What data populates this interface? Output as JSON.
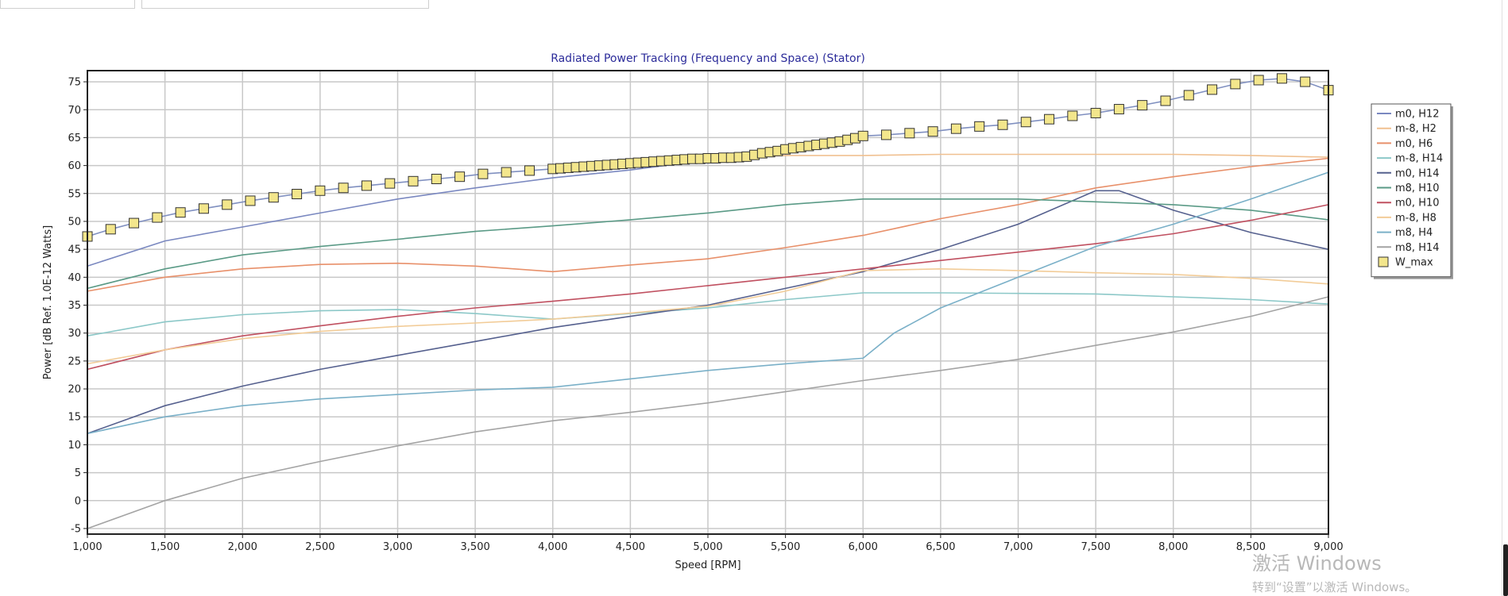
{
  "colors": {
    "plot_bg": "#ffffff",
    "grid": "#c8c8c8",
    "axis": "#222222",
    "title": "#2c2c9a",
    "marker_fill": "#f3e68c",
    "marker_stroke": "#333333"
  },
  "watermark": {
    "line1": "激活 Windows",
    "line2": "转到“设置”以激活 Windows。"
  },
  "chart_data": {
    "type": "line",
    "title": "Radiated Power Tracking (Frequency and Space) (Stator)",
    "xlabel": "Speed [RPM]",
    "ylabel": "Power [dB Ref. 1.0E-12 Watts]",
    "xlim": [
      1000,
      9000
    ],
    "ylim": [
      -6,
      77
    ],
    "xticks": [
      1000,
      1500,
      2000,
      2500,
      3000,
      3500,
      4000,
      4500,
      5000,
      5500,
      6000,
      6500,
      7000,
      7500,
      8000,
      8500,
      9000
    ],
    "xtick_labels": [
      "1,000",
      "1,500",
      "2,000",
      "2,500",
      "3,000",
      "3,500",
      "4,000",
      "4,500",
      "5,000",
      "5,500",
      "6,000",
      "6,500",
      "7,000",
      "7,500",
      "8,000",
      "8,500",
      "9,000"
    ],
    "yticks": [
      -5,
      0,
      5,
      10,
      15,
      20,
      25,
      30,
      35,
      40,
      45,
      50,
      55,
      60,
      65,
      70,
      75
    ],
    "ytick_labels": [
      "-5",
      "0",
      "5",
      "10",
      "15",
      "20",
      "25",
      "30",
      "35",
      "40",
      "45",
      "50",
      "55",
      "60",
      "65",
      "70",
      "75"
    ],
    "grid": true,
    "legend_position": "right",
    "series": [
      {
        "name": "m0, H12",
        "color": "#7a88c0",
        "x": [
          1000,
          1500,
          2000,
          2500,
          3000,
          3500,
          4000,
          4500,
          5000,
          5500,
          6000
        ],
        "y": [
          42,
          46.5,
          49,
          51.5,
          54,
          56,
          57.8,
          59.2,
          61,
          62.8,
          65
        ]
      },
      {
        "name": "m-8, H2",
        "color": "#f0c090",
        "x": [
          4000,
          4500,
          5000,
          5500,
          6000,
          6500,
          7000,
          7500,
          8000,
          8500,
          9000
        ],
        "y": [
          59.5,
          60.2,
          61.3,
          61.8,
          61.8,
          62,
          62,
          62,
          62,
          61.8,
          61.5
        ]
      },
      {
        "name": "m0, H6",
        "color": "#e8906a",
        "x": [
          1000,
          1500,
          2000,
          2500,
          3000,
          3500,
          4000,
          4500,
          5000,
          5500,
          6000,
          6500,
          7000,
          7500,
          8000,
          8500,
          9000
        ],
        "y": [
          37.5,
          40,
          41.5,
          42.3,
          42.5,
          42,
          41,
          42.2,
          43.3,
          45.3,
          47.5,
          50.5,
          53,
          56,
          58,
          59.8,
          61.3
        ]
      },
      {
        "name": "m-8, H14",
        "color": "#8cc8c8",
        "x": [
          1000,
          1500,
          2000,
          2500,
          3000,
          3500,
          4000,
          4500,
          5000,
          5500,
          6000,
          6500,
          7000,
          7500,
          8000,
          8500,
          9000
        ],
        "y": [
          29.5,
          32,
          33.3,
          34,
          34.2,
          33.5,
          32.5,
          33.5,
          34.5,
          36,
          37.2,
          37.2,
          37.1,
          37,
          36.5,
          36,
          35.2
        ]
      },
      {
        "name": "m0, H14",
        "color": "#55608e",
        "x": [
          1000,
          1500,
          2000,
          2500,
          3000,
          3500,
          4000,
          4500,
          5000,
          5500,
          6000,
          6500,
          7000,
          7500,
          7650,
          8000,
          8500,
          9000
        ],
        "y": [
          12,
          17,
          20.5,
          23.5,
          26,
          28.5,
          31,
          33,
          35,
          38,
          41,
          45,
          49.5,
          55.5,
          55.5,
          52,
          48,
          45
        ]
      },
      {
        "name": "m8, H10",
        "color": "#5a9a86",
        "x": [
          1000,
          1500,
          2000,
          2500,
          3000,
          3500,
          4000,
          4500,
          5000,
          5500,
          6000,
          6500,
          7000,
          7500,
          8000,
          8500,
          9000
        ],
        "y": [
          38,
          41.5,
          44,
          45.5,
          46.8,
          48.2,
          49.2,
          50.3,
          51.5,
          53,
          54,
          54,
          54,
          53.5,
          53,
          52,
          50.3
        ]
      },
      {
        "name": "m0, H10",
        "color": "#c05060",
        "x": [
          1000,
          1500,
          2000,
          2500,
          3000,
          3500,
          4000,
          4500,
          5000,
          5500,
          6000,
          6500,
          7000,
          7500,
          8000,
          8500,
          9000
        ],
        "y": [
          23.5,
          27,
          29.5,
          31.3,
          33,
          34.5,
          35.7,
          37,
          38.5,
          40,
          41.5,
          43,
          44.5,
          46,
          47.8,
          50.2,
          53
        ]
      },
      {
        "name": "m-8, H8",
        "color": "#f2cc98",
        "x": [
          1000,
          1500,
          2000,
          2500,
          3000,
          3500,
          4000,
          4500,
          5000,
          5500,
          6000,
          6500,
          7000,
          7500,
          8000,
          8500,
          9000
        ],
        "y": [
          24.5,
          27,
          29,
          30.3,
          31.2,
          31.8,
          32.5,
          33.6,
          34.8,
          37.5,
          41.2,
          41.5,
          41.2,
          40.8,
          40.5,
          39.8,
          38.8
        ]
      },
      {
        "name": "m8, H4",
        "color": "#7ab0c8",
        "x": [
          1000,
          1500,
          2000,
          2500,
          3000,
          3500,
          4000,
          4500,
          5000,
          5500,
          6000,
          6200,
          6500,
          7000,
          7500,
          8000,
          8500,
          9000
        ],
        "y": [
          12,
          15,
          17,
          18.2,
          19,
          19.8,
          20.3,
          21.8,
          23.3,
          24.5,
          25.5,
          30,
          34.5,
          40,
          45.5,
          49.5,
          54,
          58.8
        ]
      },
      {
        "name": "m8, H14",
        "color": "#a4a4a4",
        "x": [
          1000,
          1500,
          2000,
          2500,
          3000,
          3500,
          4000,
          4500,
          5000,
          5500,
          6000,
          6500,
          7000,
          7500,
          8000,
          8500,
          9000
        ],
        "y": [
          -5,
          0,
          4,
          7,
          9.8,
          12.3,
          14.3,
          15.8,
          17.5,
          19.5,
          21.5,
          23.3,
          25.3,
          27.8,
          30.2,
          33,
          36.5
        ]
      },
      {
        "name": "W_max",
        "color": "#8090c0",
        "marker": "square",
        "x": [
          1000,
          1150,
          1300,
          1450,
          1600,
          1750,
          1900,
          2050,
          2200,
          2350,
          2500,
          2650,
          2800,
          2950,
          3100,
          3250,
          3400,
          3550,
          3700,
          3850,
          4000,
          4050,
          4100,
          4150,
          4200,
          4250,
          4300,
          4350,
          4400,
          4450,
          4500,
          4550,
          4600,
          4650,
          4700,
          4750,
          4800,
          4850,
          4900,
          4950,
          5000,
          5050,
          5100,
          5150,
          5200,
          5250,
          5300,
          5350,
          5400,
          5450,
          5500,
          5550,
          5600,
          5650,
          5700,
          5750,
          5800,
          5850,
          5900,
          5950,
          6000,
          6150,
          6300,
          6450,
          6600,
          6750,
          6900,
          7050,
          7200,
          7350,
          7500,
          7650,
          7800,
          7950,
          8100,
          8250,
          8400,
          8550,
          8700,
          8850,
          9000
        ],
        "y": [
          47.3,
          48.6,
          49.7,
          50.7,
          51.6,
          52.3,
          53,
          53.7,
          54.3,
          54.9,
          55.5,
          56,
          56.4,
          56.8,
          57.2,
          57.6,
          58,
          58.5,
          58.8,
          59.1,
          59.4,
          59.5,
          59.6,
          59.7,
          59.8,
          59.9,
          60,
          60.1,
          60.2,
          60.3,
          60.4,
          60.5,
          60.6,
          60.7,
          60.8,
          60.9,
          61,
          61.1,
          61.2,
          61.2,
          61.3,
          61.3,
          61.4,
          61.4,
          61.5,
          61.6,
          61.9,
          62.2,
          62.4,
          62.6,
          62.9,
          63.1,
          63.3,
          63.5,
          63.7,
          63.9,
          64.1,
          64.3,
          64.6,
          64.9,
          65.3,
          65.5,
          65.8,
          66.1,
          66.6,
          67,
          67.3,
          67.8,
          68.3,
          68.9,
          69.4,
          70.1,
          70.8,
          71.6,
          72.6,
          73.6,
          74.6,
          75.3,
          75.6,
          75,
          73.5
        ]
      }
    ]
  }
}
